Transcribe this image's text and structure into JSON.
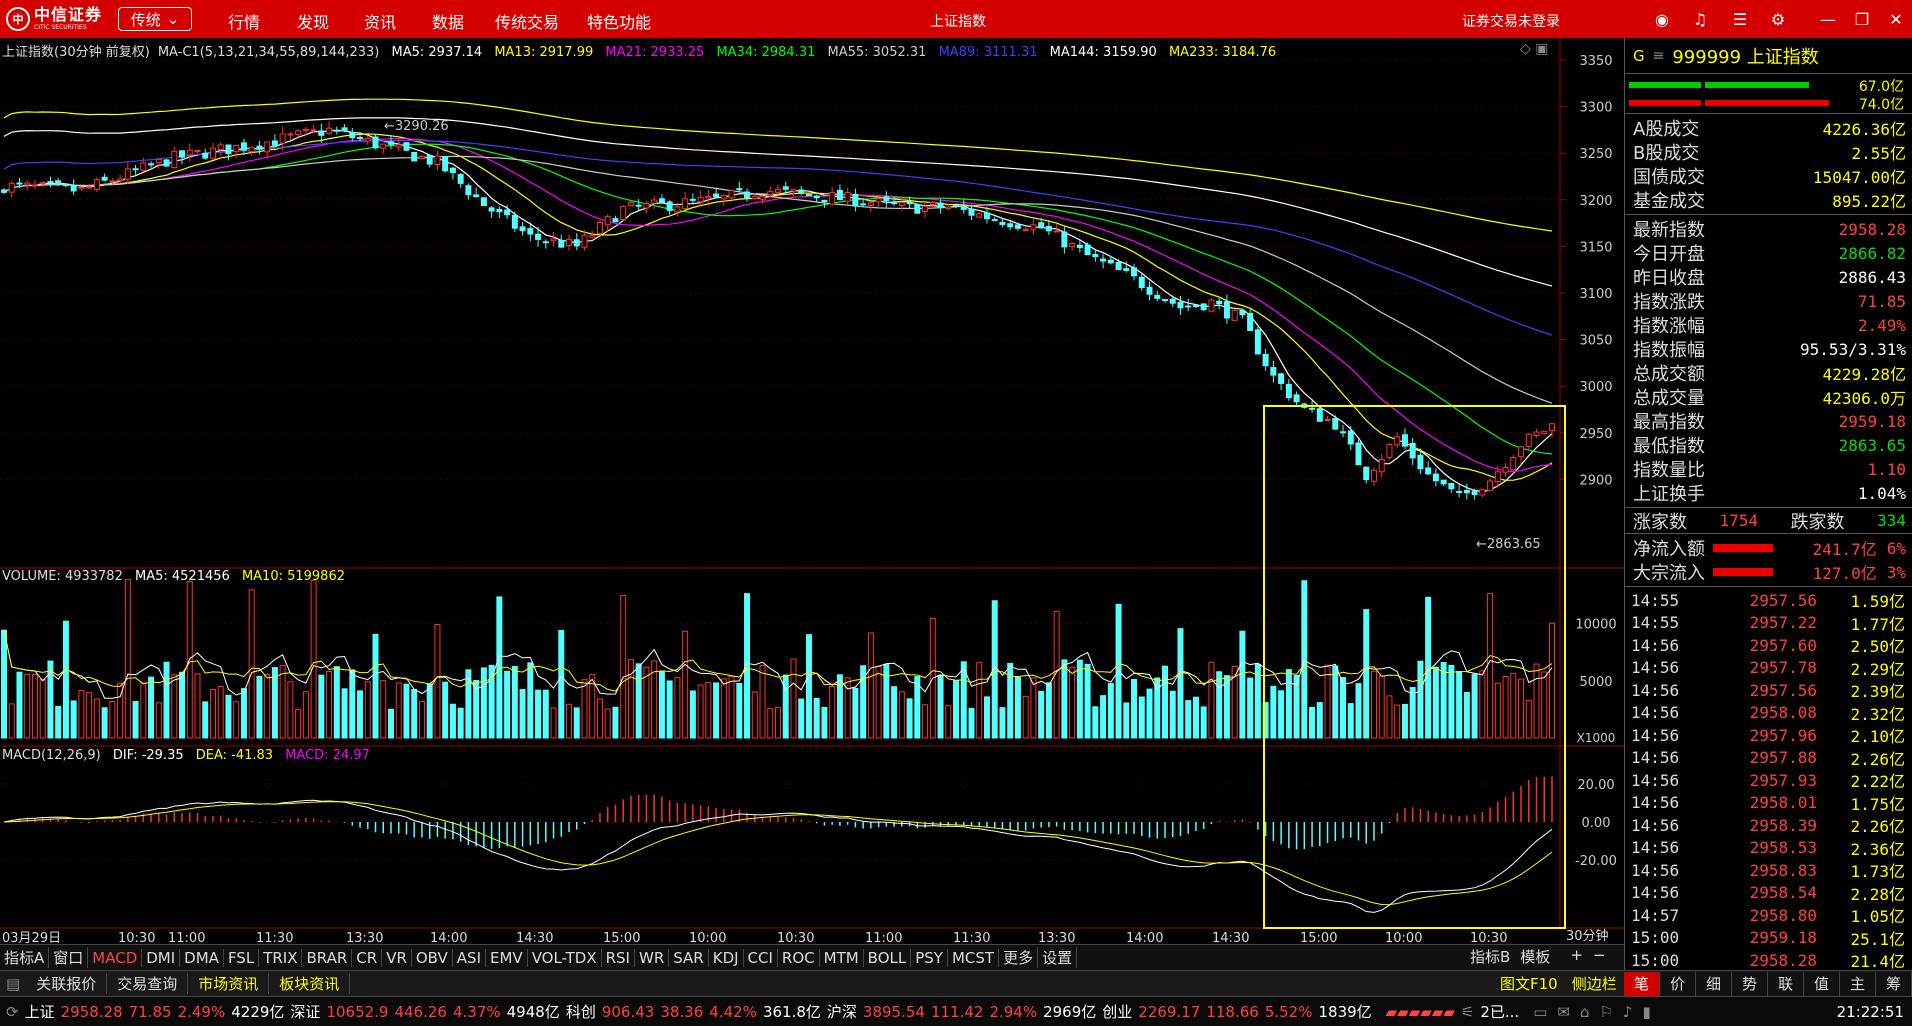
{
  "app": {
    "logo_name": "中信证券",
    "logo_en": "CITIC SECURITIES",
    "mode": "传统",
    "window_title": "上证指数",
    "login_status": "证券交易未登录"
  },
  "menu": [
    "行情",
    "发现",
    "资讯",
    "数据",
    "传统交易",
    "特色功能"
  ],
  "chart_header": {
    "title": "上证指数(30分钟 前复权)",
    "ma_label": "MA-C1(5,13,21,34,55,89,144,233)",
    "ma5": "MA5: 2937.14",
    "ma13": "MA13: 2917.99",
    "ma21": "MA21: 2933.25",
    "ma34": "MA34: 2984.31",
    "ma55": "MA55: 3052.31",
    "ma89": "MA89: 3111.31",
    "ma144": "MA144: 3159.90",
    "ma233": "MA233: 3184.76"
  },
  "volume_header": {
    "volume": "VOLUME: 4933782",
    "ma5": "MA5: 4521456",
    "ma10": "MA10: 5199862"
  },
  "macd_header": {
    "label": "MACD(12,26,9)",
    "dif": "DIF: -29.35",
    "dea": "DEA: -41.83",
    "macd": "MACD: 24.97"
  },
  "annotations": {
    "high": "3290.26",
    "low": "2863.65"
  },
  "price_axis": [
    "3350",
    "3300",
    "3250",
    "3200",
    "3150",
    "3100",
    "3050",
    "3000",
    "2950",
    "2900"
  ],
  "volume_axis": [
    "10000",
    "5000"
  ],
  "volume_unit": "X1000",
  "macd_axis": [
    "20.00",
    "0.00",
    "-20.00"
  ],
  "time_axis": [
    "03月29日",
    "10:30",
    "11:00",
    "11:30",
    "13:30",
    "14:00",
    "14:30",
    "15:00",
    "10:00",
    "10:30",
    "11:00",
    "11:30",
    "13:30",
    "14:00",
    "14:30",
    "15:00",
    "10:00",
    "10:30"
  ],
  "period_label": "30分钟",
  "indicator_tabs": [
    "指标A",
    "窗口",
    "MACD",
    "DMI",
    "DMA",
    "FSL",
    "TRIX",
    "BRAR",
    "CR",
    "VR",
    "OBV",
    "ASI",
    "EMV",
    "VOL-TDX",
    "RSI",
    "WR",
    "SAR",
    "KDJ",
    "CCI",
    "ROC",
    "MTM",
    "BOLL",
    "PSY",
    "MCST",
    "更多",
    "设置"
  ],
  "indicator_right": [
    "指标B",
    "模板",
    "+",
    "−"
  ],
  "function_tabs": [
    "关联报价",
    "交易查询",
    "市场资讯",
    "板块资讯"
  ],
  "function_right": [
    "图文F10",
    "侧边栏"
  ],
  "right_tabs": [
    "笔",
    "价",
    "细",
    "势",
    "联",
    "值",
    "主",
    "筹"
  ],
  "stock": {
    "prefix": "G",
    "code": "999999 上证指数"
  },
  "ratio_bars": {
    "top": "67.0亿",
    "bottom": "74.0亿"
  },
  "market_stats": [
    {
      "k": "A股成交",
      "v": "4226.36亿"
    },
    {
      "k": "B股成交",
      "v": "2.55亿"
    },
    {
      "k": "国债成交",
      "v": "15047.00亿"
    },
    {
      "k": "基金成交",
      "v": "895.22亿"
    }
  ],
  "index_stats": [
    {
      "k": "最新指数",
      "v": "2958.28",
      "c": "red"
    },
    {
      "k": "今日开盘",
      "v": "2866.82",
      "c": "green"
    },
    {
      "k": "昨日收盘",
      "v": "2886.43",
      "c": "white"
    },
    {
      "k": "指数涨跌",
      "v": "71.85",
      "c": "red"
    },
    {
      "k": "指数涨幅",
      "v": "2.49%",
      "c": "red"
    },
    {
      "k": "指数振幅",
      "v": "95.53/3.31%",
      "c": "white"
    },
    {
      "k": "总成交额",
      "v": "4229.28亿",
      "c": "yellow"
    },
    {
      "k": "总成交量",
      "v": "42306.0万",
      "c": "yellow"
    },
    {
      "k": "最高指数",
      "v": "2959.18",
      "c": "red"
    },
    {
      "k": "最低指数",
      "v": "2863.65",
      "c": "green"
    },
    {
      "k": "指数量比",
      "v": "1.10",
      "c": "red"
    },
    {
      "k": "上证换手",
      "v": "1.04%",
      "c": "white"
    }
  ],
  "breadth": {
    "up_label": "涨家数",
    "up": "1754",
    "down_label": "跌家数",
    "down": "334"
  },
  "flows": [
    {
      "k": "净流入额",
      "v": "241.7亿",
      "pct": "6%"
    },
    {
      "k": "大宗流入",
      "v": "127.0亿",
      "pct": "3%"
    }
  ],
  "ticks": [
    {
      "t": "14:55",
      "p": "2957.56",
      "q": "1.59亿"
    },
    {
      "t": "14:55",
      "p": "2957.22",
      "q": "1.77亿"
    },
    {
      "t": "14:56",
      "p": "2957.60",
      "q": "2.50亿"
    },
    {
      "t": "14:56",
      "p": "2957.78",
      "q": "2.29亿"
    },
    {
      "t": "14:56",
      "p": "2957.56",
      "q": "2.39亿"
    },
    {
      "t": "14:56",
      "p": "2958.08",
      "q": "2.32亿"
    },
    {
      "t": "14:56",
      "p": "2957.96",
      "q": "2.10亿"
    },
    {
      "t": "14:56",
      "p": "2957.88",
      "q": "2.26亿"
    },
    {
      "t": "14:56",
      "p": "2957.93",
      "q": "2.22亿"
    },
    {
      "t": "14:56",
      "p": "2958.01",
      "q": "1.75亿"
    },
    {
      "t": "14:56",
      "p": "2958.39",
      "q": "2.26亿"
    },
    {
      "t": "14:56",
      "p": "2958.53",
      "q": "2.36亿"
    },
    {
      "t": "14:56",
      "p": "2958.83",
      "q": "1.73亿"
    },
    {
      "t": "14:56",
      "p": "2958.54",
      "q": "2.28亿"
    },
    {
      "t": "14:57",
      "p": "2958.80",
      "q": "1.05亿"
    },
    {
      "t": "15:00",
      "p": "2959.18",
      "q": "25.1亿"
    },
    {
      "t": "15:00",
      "p": "2958.28",
      "q": "21.4亿"
    }
  ],
  "status": {
    "sh": {
      "name": "上证",
      "price": "2958.28",
      "chg": "71.85",
      "pct": "2.49%",
      "amt": "4229亿"
    },
    "sz": {
      "name": "深证",
      "price": "10652.9",
      "chg": "446.26",
      "pct": "4.37%",
      "amt": "4948亿"
    },
    "kc": {
      "name": "科创",
      "price": "906.43",
      "chg": "38.36",
      "pct": "4.42%",
      "amt": "361.8亿"
    },
    "hs": {
      "name": "沪深",
      "price": "3895.54",
      "chg": "111.42",
      "pct": "2.94%",
      "amt": "2969亿"
    },
    "cy": {
      "name": "创业",
      "price": "2269.17",
      "chg": "118.66",
      "pct": "5.52%",
      "amt": "1839亿"
    },
    "msg": "2已...",
    "time": "21:22:51"
  },
  "colors": {
    "up": "#ff3030",
    "down": "#54ffff",
    "brand": "#d40000",
    "highlight_box": "#ffff00"
  }
}
